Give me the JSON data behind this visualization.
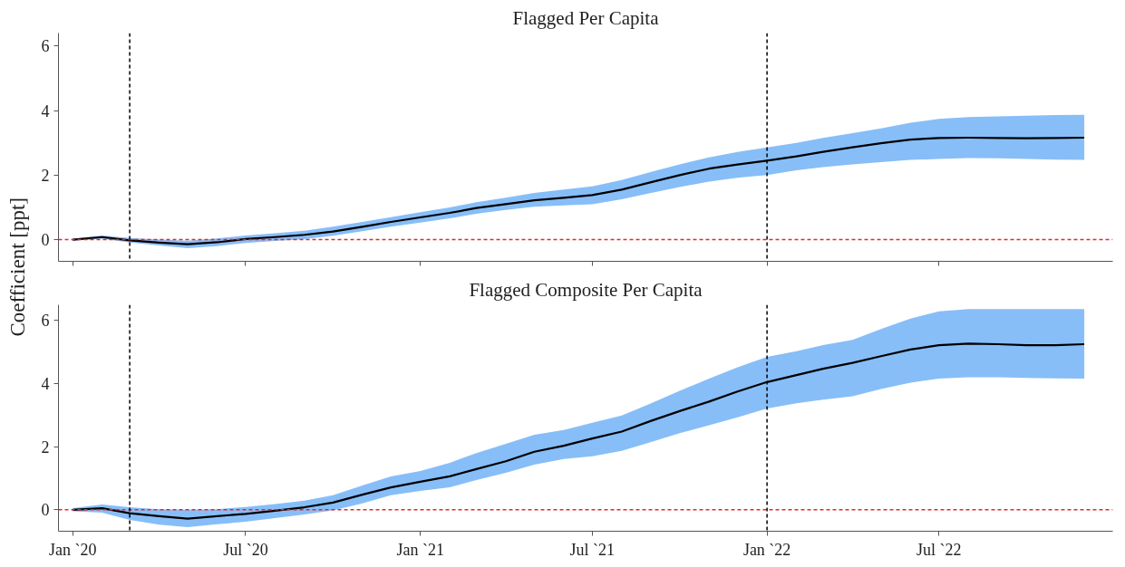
{
  "chart_data": [
    {
      "type": "line",
      "title": "Flagged Per Capita",
      "ylabel": "Coefficient [ppt]",
      "x": [
        "2020-01",
        "2020-02",
        "2020-03",
        "2020-04",
        "2020-05",
        "2020-06",
        "2020-07",
        "2020-08",
        "2020-09",
        "2020-10",
        "2020-11",
        "2020-12",
        "2021-01",
        "2021-02",
        "2021-03",
        "2021-04",
        "2021-05",
        "2021-06",
        "2021-07",
        "2021-08",
        "2021-09",
        "2021-10",
        "2021-11",
        "2021-12",
        "2022-01",
        "2022-02",
        "2022-03",
        "2022-04",
        "2022-05",
        "2022-06",
        "2022-07",
        "2022-08",
        "2022-09",
        "2022-10",
        "2022-11",
        "2022-12"
      ],
      "series": [
        {
          "color": "#000000",
          "values": [
            0.0,
            0.08,
            -0.02,
            -0.09,
            -0.14,
            -0.08,
            0.02,
            0.08,
            0.15,
            0.25,
            0.4,
            0.55,
            0.69,
            0.83,
            0.98,
            1.1,
            1.22,
            1.3,
            1.38,
            1.55,
            1.78,
            2.0,
            2.2,
            2.33,
            2.45,
            2.58,
            2.72,
            2.86,
            2.99,
            3.1,
            3.15,
            3.16,
            3.15,
            3.14,
            3.15,
            3.16
          ],
          "upper": [
            0.03,
            0.13,
            0.05,
            0.0,
            -0.03,
            0.04,
            0.13,
            0.2,
            0.28,
            0.4,
            0.55,
            0.7,
            0.85,
            1.0,
            1.16,
            1.3,
            1.45,
            1.55,
            1.65,
            1.85,
            2.1,
            2.33,
            2.55,
            2.72,
            2.86,
            3.0,
            3.15,
            3.3,
            3.45,
            3.62,
            3.74,
            3.8,
            3.82,
            3.84,
            3.86,
            3.87
          ],
          "lower": [
            -0.03,
            0.03,
            -0.09,
            -0.18,
            -0.26,
            -0.2,
            -0.1,
            -0.04,
            0.02,
            0.12,
            0.26,
            0.4,
            0.53,
            0.66,
            0.8,
            0.92,
            1.02,
            1.06,
            1.1,
            1.25,
            1.45,
            1.63,
            1.8,
            1.92,
            2.0,
            2.15,
            2.25,
            2.33,
            2.4,
            2.47,
            2.5,
            2.53,
            2.52,
            2.5,
            2.48,
            2.47
          ]
        }
      ],
      "ref_lines": [
        {
          "axis": "y",
          "value": 0,
          "color": "#e8262b",
          "line_style": "dashed"
        },
        {
          "axis": "x",
          "value": "2020-03",
          "color": "#000000",
          "line_style": "dashed"
        },
        {
          "axis": "x",
          "value": "2022-01",
          "color": "#000000",
          "line_style": "dashed"
        }
      ],
      "xlim": [
        "2019-12-17",
        "2022-12-31"
      ],
      "xticks": [
        {
          "value": "2020-01",
          "label": null
        },
        {
          "value": "2020-07",
          "label": null
        },
        {
          "value": "2021-01",
          "label": null
        },
        {
          "value": "2021-07",
          "label": null
        },
        {
          "value": "2022-01",
          "label": null
        },
        {
          "value": "2022-07",
          "label": null
        }
      ],
      "ylim": [
        -0.67,
        6.4
      ],
      "yticks": [
        0,
        2,
        4,
        6
      ],
      "tick_labels": "y",
      "grid": false,
      "line_style": "solid",
      "marker": "none"
    },
    {
      "type": "line",
      "title": "Flagged Composite Per Capita",
      "x": [
        "2020-01",
        "2020-02",
        "2020-03",
        "2020-04",
        "2020-05",
        "2020-06",
        "2020-07",
        "2020-08",
        "2020-09",
        "2020-10",
        "2020-11",
        "2020-12",
        "2021-01",
        "2021-02",
        "2021-03",
        "2021-04",
        "2021-05",
        "2021-06",
        "2021-07",
        "2021-08",
        "2021-09",
        "2021-10",
        "2021-11",
        "2021-12",
        "2022-01",
        "2022-02",
        "2022-03",
        "2022-04",
        "2022-05",
        "2022-06",
        "2022-07",
        "2022-08",
        "2022-09",
        "2022-10",
        "2022-11",
        "2022-12"
      ],
      "series": [
        {
          "color": "#000000",
          "values": [
            0.0,
            0.05,
            -0.11,
            -0.2,
            -0.28,
            -0.2,
            -0.13,
            -0.03,
            0.08,
            0.23,
            0.48,
            0.71,
            0.89,
            1.06,
            1.29,
            1.54,
            1.84,
            2.03,
            2.26,
            2.48,
            2.82,
            3.13,
            3.43,
            3.75,
            4.05,
            4.27,
            4.47,
            4.66,
            4.87,
            5.08,
            5.22,
            5.27,
            5.25,
            5.22,
            5.22,
            5.25
          ],
          "upper": [
            0.05,
            0.17,
            0.08,
            0.02,
            0.0,
            0.02,
            0.09,
            0.18,
            0.29,
            0.46,
            0.77,
            1.06,
            1.23,
            1.49,
            1.8,
            2.09,
            2.38,
            2.53,
            2.76,
            2.99,
            3.38,
            3.77,
            4.16,
            4.52,
            4.85,
            5.03,
            5.22,
            5.39,
            5.73,
            6.06,
            6.29,
            6.36,
            6.36,
            6.36,
            6.36,
            6.36
          ],
          "lower": [
            -0.05,
            -0.09,
            -0.32,
            -0.47,
            -0.55,
            -0.46,
            -0.38,
            -0.26,
            -0.15,
            -0.02,
            0.2,
            0.46,
            0.6,
            0.71,
            0.94,
            1.17,
            1.43,
            1.61,
            1.7,
            1.87,
            2.15,
            2.43,
            2.68,
            2.93,
            3.21,
            3.38,
            3.49,
            3.6,
            3.83,
            4.03,
            4.16,
            4.2,
            4.2,
            4.18,
            4.17,
            4.16
          ]
        }
      ],
      "ref_lines": [
        {
          "axis": "y",
          "value": 0,
          "color": "#e8262b",
          "line_style": "dashed"
        },
        {
          "axis": "x",
          "value": "2020-03",
          "color": "#000000",
          "line_style": "dashed"
        },
        {
          "axis": "x",
          "value": "2022-01",
          "color": "#000000",
          "line_style": "dashed"
        }
      ],
      "xlim": [
        "2019-12-17",
        "2022-12-31"
      ],
      "xticks": [
        {
          "value": "2020-01",
          "label": "Jan `20"
        },
        {
          "value": "2020-07",
          "label": "Jul `20"
        },
        {
          "value": "2021-01",
          "label": "Jan `21"
        },
        {
          "value": "2021-07",
          "label": "Jul `21"
        },
        {
          "value": "2022-01",
          "label": "Jan `22"
        },
        {
          "value": "2022-07",
          "label": "Jul `22"
        }
      ],
      "ylim": [
        -0.68,
        6.5
      ],
      "yticks": [
        0,
        2,
        4,
        6
      ],
      "grid": false,
      "line_style": "solid",
      "marker": "none"
    }
  ]
}
